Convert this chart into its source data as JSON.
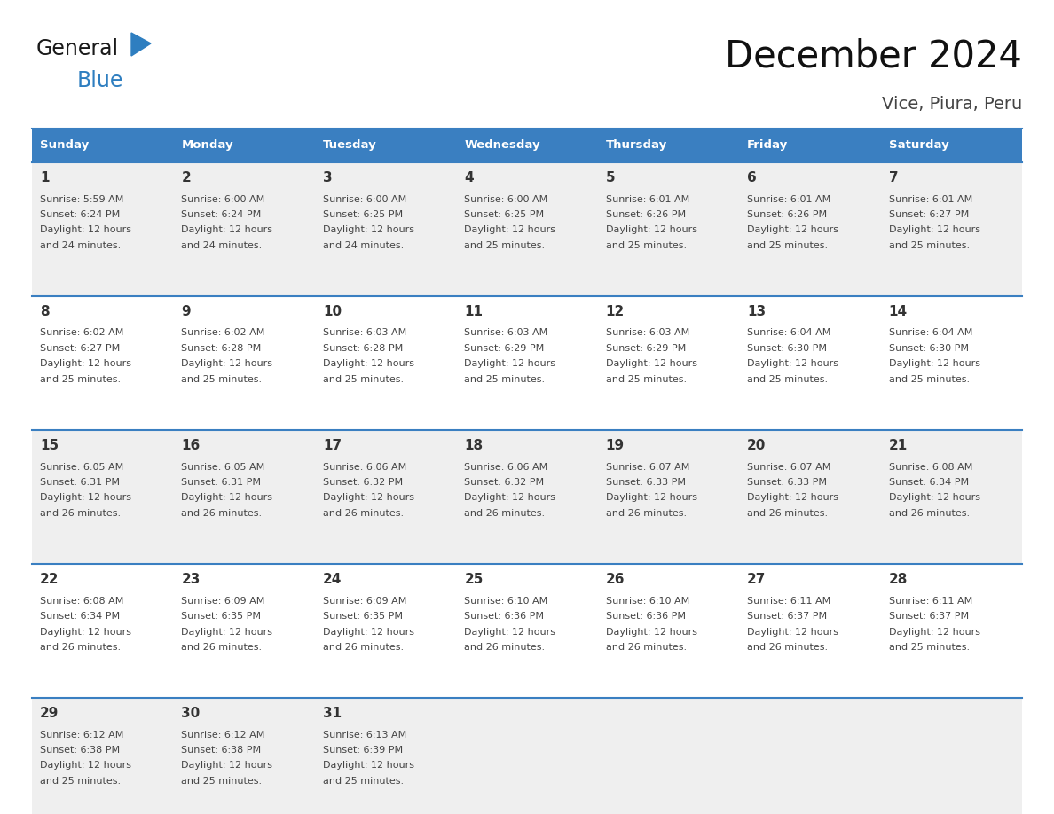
{
  "title": "December 2024",
  "subtitle": "Vice, Piura, Peru",
  "header_color": "#3A7FC1",
  "header_text_color": "#FFFFFF",
  "day_names": [
    "Sunday",
    "Monday",
    "Tuesday",
    "Wednesday",
    "Thursday",
    "Friday",
    "Saturday"
  ],
  "cell_bg_even": "#EFEFEF",
  "cell_bg_odd": "#FFFFFF",
  "border_color": "#3A7FC1",
  "day_num_color": "#333333",
  "text_color": "#444444",
  "logo_general_color": "#1a1a1a",
  "logo_blue_color": "#2E7EC0",
  "weeks": [
    [
      {
        "day": 1,
        "sunrise": "5:59 AM",
        "sunset": "6:24 PM",
        "daylight": "12 hours and 24 minutes"
      },
      {
        "day": 2,
        "sunrise": "6:00 AM",
        "sunset": "6:24 PM",
        "daylight": "12 hours and 24 minutes"
      },
      {
        "day": 3,
        "sunrise": "6:00 AM",
        "sunset": "6:25 PM",
        "daylight": "12 hours and 24 minutes"
      },
      {
        "day": 4,
        "sunrise": "6:00 AM",
        "sunset": "6:25 PM",
        "daylight": "12 hours and 25 minutes"
      },
      {
        "day": 5,
        "sunrise": "6:01 AM",
        "sunset": "6:26 PM",
        "daylight": "12 hours and 25 minutes"
      },
      {
        "day": 6,
        "sunrise": "6:01 AM",
        "sunset": "6:26 PM",
        "daylight": "12 hours and 25 minutes"
      },
      {
        "day": 7,
        "sunrise": "6:01 AM",
        "sunset": "6:27 PM",
        "daylight": "12 hours and 25 minutes"
      }
    ],
    [
      {
        "day": 8,
        "sunrise": "6:02 AM",
        "sunset": "6:27 PM",
        "daylight": "12 hours and 25 minutes"
      },
      {
        "day": 9,
        "sunrise": "6:02 AM",
        "sunset": "6:28 PM",
        "daylight": "12 hours and 25 minutes"
      },
      {
        "day": 10,
        "sunrise": "6:03 AM",
        "sunset": "6:28 PM",
        "daylight": "12 hours and 25 minutes"
      },
      {
        "day": 11,
        "sunrise": "6:03 AM",
        "sunset": "6:29 PM",
        "daylight": "12 hours and 25 minutes"
      },
      {
        "day": 12,
        "sunrise": "6:03 AM",
        "sunset": "6:29 PM",
        "daylight": "12 hours and 25 minutes"
      },
      {
        "day": 13,
        "sunrise": "6:04 AM",
        "sunset": "6:30 PM",
        "daylight": "12 hours and 25 minutes"
      },
      {
        "day": 14,
        "sunrise": "6:04 AM",
        "sunset": "6:30 PM",
        "daylight": "12 hours and 25 minutes"
      }
    ],
    [
      {
        "day": 15,
        "sunrise": "6:05 AM",
        "sunset": "6:31 PM",
        "daylight": "12 hours and 26 minutes"
      },
      {
        "day": 16,
        "sunrise": "6:05 AM",
        "sunset": "6:31 PM",
        "daylight": "12 hours and 26 minutes"
      },
      {
        "day": 17,
        "sunrise": "6:06 AM",
        "sunset": "6:32 PM",
        "daylight": "12 hours and 26 minutes"
      },
      {
        "day": 18,
        "sunrise": "6:06 AM",
        "sunset": "6:32 PM",
        "daylight": "12 hours and 26 minutes"
      },
      {
        "day": 19,
        "sunrise": "6:07 AM",
        "sunset": "6:33 PM",
        "daylight": "12 hours and 26 minutes"
      },
      {
        "day": 20,
        "sunrise": "6:07 AM",
        "sunset": "6:33 PM",
        "daylight": "12 hours and 26 minutes"
      },
      {
        "day": 21,
        "sunrise": "6:08 AM",
        "sunset": "6:34 PM",
        "daylight": "12 hours and 26 minutes"
      }
    ],
    [
      {
        "day": 22,
        "sunrise": "6:08 AM",
        "sunset": "6:34 PM",
        "daylight": "12 hours and 26 minutes"
      },
      {
        "day": 23,
        "sunrise": "6:09 AM",
        "sunset": "6:35 PM",
        "daylight": "12 hours and 26 minutes"
      },
      {
        "day": 24,
        "sunrise": "6:09 AM",
        "sunset": "6:35 PM",
        "daylight": "12 hours and 26 minutes"
      },
      {
        "day": 25,
        "sunrise": "6:10 AM",
        "sunset": "6:36 PM",
        "daylight": "12 hours and 26 minutes"
      },
      {
        "day": 26,
        "sunrise": "6:10 AM",
        "sunset": "6:36 PM",
        "daylight": "12 hours and 26 minutes"
      },
      {
        "day": 27,
        "sunrise": "6:11 AM",
        "sunset": "6:37 PM",
        "daylight": "12 hours and 26 minutes"
      },
      {
        "day": 28,
        "sunrise": "6:11 AM",
        "sunset": "6:37 PM",
        "daylight": "12 hours and 25 minutes"
      }
    ],
    [
      {
        "day": 29,
        "sunrise": "6:12 AM",
        "sunset": "6:38 PM",
        "daylight": "12 hours and 25 minutes"
      },
      {
        "day": 30,
        "sunrise": "6:12 AM",
        "sunset": "6:38 PM",
        "daylight": "12 hours and 25 minutes"
      },
      {
        "day": 31,
        "sunrise": "6:13 AM",
        "sunset": "6:39 PM",
        "daylight": "12 hours and 25 minutes"
      },
      null,
      null,
      null,
      null
    ]
  ],
  "figsize": [
    11.88,
    9.18
  ],
  "dpi": 100
}
